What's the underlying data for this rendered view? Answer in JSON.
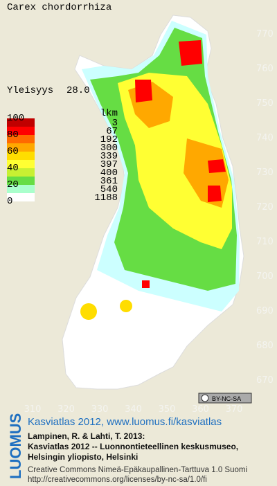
{
  "title": "Carex chordorrhiza",
  "frequency": {
    "label": "Yleisyys",
    "value": "28.0"
  },
  "legend": {
    "scale": [
      100,
      80,
      60,
      40,
      20,
      0
    ],
    "count_header": "lkm",
    "counts": [
      3,
      67,
      192,
      300,
      339,
      397,
      400,
      361,
      540,
      1188
    ],
    "colors": [
      "#c00000",
      "#ff0000",
      "#ff6a00",
      "#ffa800",
      "#ffdd00",
      "#ffff33",
      "#c8f032",
      "#66dd44",
      "#aaffcc",
      "#ffffff"
    ]
  },
  "axes": {
    "y_labels": [
      770,
      760,
      750,
      740,
      730,
      720,
      710,
      700,
      690,
      680,
      670
    ],
    "x_labels": [
      310,
      320,
      330,
      340,
      350,
      360,
      370
    ]
  },
  "license_badge": "BY-NC-SA",
  "logo": "LUOMUS",
  "footer": {
    "link": "Kasviatlas 2012, www.luomus.fi/kasviatlas",
    "citation": [
      "Lampinen, R. & Lahti, T. 2013:",
      "Kasviatlas 2012 -- Luonnontieteellinen keskusmuseo,",
      "Helsingin yliopisto, Helsinki"
    ],
    "license": [
      "Creative Commons Nimeä-Epäkaupallinen-Tarttuva 1.0 Suomi",
      "http://creativecommons.org/licenses/by-nc-sa/1.0/fi"
    ]
  }
}
